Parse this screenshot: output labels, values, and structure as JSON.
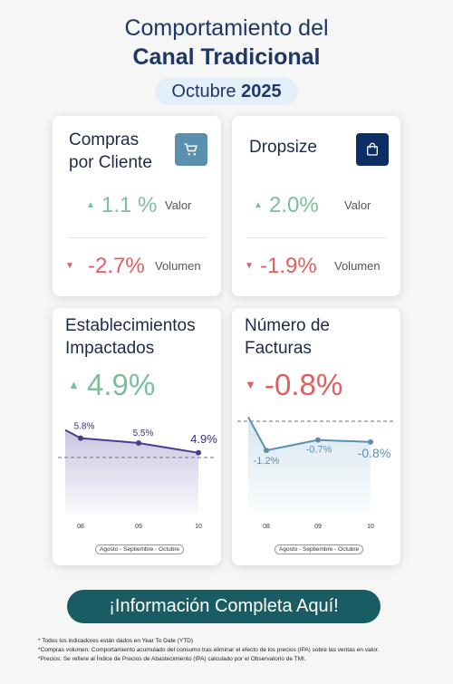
{
  "header": {
    "line1": "Comportamiento del",
    "line2": "Canal Tradicional",
    "month": "Octubre",
    "year": "2025"
  },
  "cards": {
    "compras": {
      "title_l1": "Compras",
      "title_l2": "por Cliente",
      "icon": "shopping-cart-icon",
      "valor": {
        "value": "1.1 %",
        "label": "Valor"
      },
      "volumen": {
        "value": "-2.7%",
        "label": "Volumen"
      }
    },
    "dropsize": {
      "title": "Dropsize",
      "icon": "shopping-bag-icon",
      "valor": {
        "value": "2.0%",
        "label": "Valor"
      },
      "volumen": {
        "value": "-1.9%",
        "label": "Volumen"
      }
    },
    "establecimientos": {
      "title_l1": "Establecimientos",
      "title_l2": "Impactados",
      "value": "4.9%",
      "legend": "Agosto - Septiembre - Octubre"
    },
    "facturas": {
      "title_l1": "Número de",
      "title_l2": "Facturas",
      "value": "-0.8%",
      "legend": "Agosto - Septiembre - Octubre"
    }
  },
  "chart_data": [
    {
      "type": "area",
      "categories": [
        "08",
        "09",
        "10"
      ],
      "values": [
        5.8,
        5.5,
        4.9
      ],
      "labels": [
        "5.8%",
        "5.5%",
        "4.9%"
      ]
    },
    {
      "type": "area",
      "categories": [
        "08",
        "09",
        "10"
      ],
      "values": [
        -1.2,
        -0.7,
        -0.8
      ],
      "labels": [
        "-1.2%",
        "-0.7%",
        "-0.8%"
      ]
    }
  ],
  "cta": {
    "label": "¡Información Completa Aquí!"
  },
  "notes": [
    "* Todos los indicadores están dados en Year To Date (YTD)",
    "*Compras volumen: Comportamiento acumulado del consumo tras eliminar el efecto de los precios (IPA) sobre las ventas en valor.",
    "*Precios: Se refiere al Índice de Precios de Abastecimiento (IPA) calculado por el Observatorio de TMI."
  ],
  "colors": {
    "positive": "#7bbf9b",
    "negative": "#e06060",
    "purple": "#4a3c8c",
    "blue": "#5b8fb0",
    "cta": "#1a5c63"
  }
}
